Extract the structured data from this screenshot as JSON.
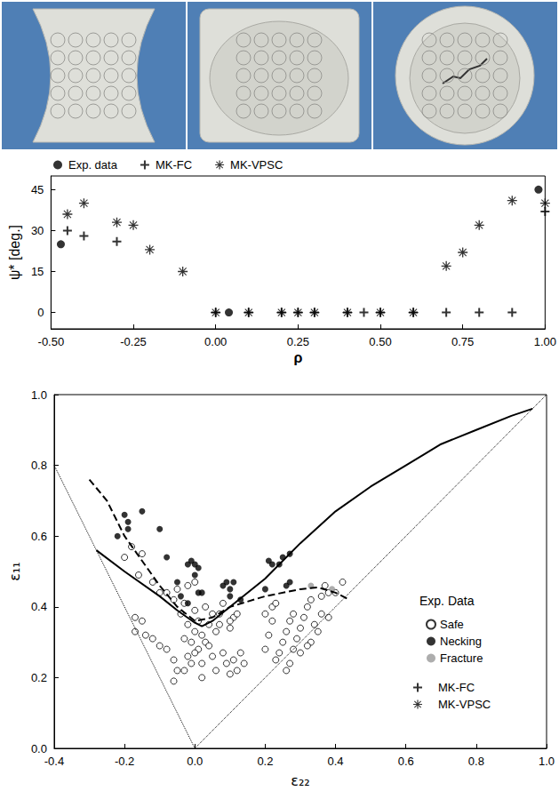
{
  "chart_data": [
    {
      "type": "scatter",
      "x_label": "ρ",
      "y_label": "ψ* [deg.]",
      "xlim": [
        -0.5,
        1.0
      ],
      "ylim": [
        -6,
        50
      ],
      "xticks": [
        {
          "value": -0.5,
          "label": "-0.50"
        },
        {
          "value": -0.25,
          "label": "-0.25"
        },
        {
          "value": 0,
          "label": "0.00"
        },
        {
          "value": 0.25,
          "label": "0.25"
        },
        {
          "value": 0.5,
          "label": "0.50"
        },
        {
          "value": 0.75,
          "label": "0.75"
        },
        {
          "value": 1.0,
          "label": "1.00"
        }
      ],
      "yticks": [
        0,
        15,
        30,
        45
      ],
      "grid": false,
      "legend": "top",
      "series": [
        {
          "name": "Exp. data",
          "marker": "filled_circle",
          "color": "#000000",
          "x": [
            -0.47,
            0.04,
            0.98
          ],
          "values": [
            25,
            0,
            45
          ]
        },
        {
          "name": "MK-FC",
          "marker": "plus",
          "color": "#000000",
          "x": [
            -0.45,
            -0.4,
            -0.3,
            0,
            0.1,
            0.2,
            0.25,
            0.3,
            0.4,
            0.45,
            0.5,
            0.6,
            0.7,
            0.8,
            0.9,
            1.0
          ],
          "values": [
            30,
            28,
            26,
            0,
            0,
            0,
            0,
            0,
            0,
            0,
            0,
            0,
            0,
            0,
            0,
            37
          ]
        },
        {
          "name": "MK-VPSC",
          "marker": "asterisk",
          "color": "#000000",
          "x": [
            -0.45,
            -0.4,
            -0.3,
            -0.25,
            -0.2,
            -0.1,
            0,
            0.1,
            0.2,
            0.25,
            0.3,
            0.4,
            0.5,
            0.6,
            0.7,
            0.75,
            0.8,
            0.9,
            1.0
          ],
          "values": [
            36,
            40,
            33,
            32,
            23,
            15,
            0,
            0,
            0,
            0,
            0,
            0,
            0,
            0,
            17,
            22,
            32,
            41,
            40
          ]
        }
      ]
    },
    {
      "type": "scatter",
      "x_label": "ε₂₂",
      "y_label": "ε₁₁",
      "xlim": [
        -0.4,
        1.0
      ],
      "ylim": [
        0,
        1.0
      ],
      "xticks": [
        -0.4,
        -0.2,
        {
          "value": 0,
          "label": "0.0"
        },
        0.2,
        0.4,
        0.6,
        0.8,
        {
          "value": 1.0,
          "label": "1.0"
        }
      ],
      "yticks": [
        {
          "value": 0,
          "label": "0.0"
        },
        0.2,
        0.4,
        0.6,
        0.8,
        {
          "value": 1.0,
          "label": "1.0"
        }
      ],
      "grid": false,
      "legend": "right",
      "legend_title": "Exp. Data",
      "series": [
        {
          "type": "line",
          "line_style": "dotted",
          "color": "#000000",
          "x": [
            -0.4,
            0,
            1.0
          ],
          "values": [
            0.8,
            0,
            1.0
          ]
        },
        {
          "name": "Safe",
          "marker": "open_circle",
          "color": "#000000",
          "x": [
            -0.2,
            -0.18,
            -0.15,
            -0.16,
            -0.12,
            -0.1,
            -0.08,
            -0.06,
            -0.05,
            -0.03,
            -0.02,
            0.0,
            -0.04,
            -0.17,
            -0.15,
            -0.17,
            -0.14,
            -0.12,
            -0.1,
            -0.08,
            -0.06,
            -0.05,
            -0.06,
            -0.03,
            -0.02,
            -0.01,
            0.0,
            0.01,
            0.02,
            0.02,
            0.03,
            0.04,
            0.05,
            0.06,
            0.05,
            0.03,
            -0.02,
            -0.03,
            0.0,
            0.01,
            0.02,
            -0.01,
            0.0,
            0.04,
            0.06,
            0.07,
            0.07,
            0.08,
            0.09,
            0.1,
            0.11,
            0.12,
            0.13,
            0.14,
            0.1,
            0.11,
            0.12,
            0.08,
            0.1,
            0.2,
            0.21,
            0.22,
            0.2,
            0.22,
            0.23,
            0.23,
            0.24,
            0.25,
            0.26,
            0.27,
            0.28,
            0.29,
            0.3,
            0.31,
            0.32,
            0.33,
            0.34,
            0.35,
            0.36,
            0.36,
            0.38,
            0.37,
            0.4,
            0.42,
            0.38,
            0.33,
            0.3,
            0.32,
            0.26,
            0.27,
            0.28
          ],
          "values": [
            0.54,
            0.57,
            0.55,
            0.49,
            0.47,
            0.44,
            0.44,
            0.42,
            0.45,
            0.41,
            0.46,
            0.47,
            0.38,
            0.37,
            0.36,
            0.33,
            0.32,
            0.31,
            0.29,
            0.28,
            0.25,
            0.22,
            0.19,
            0.22,
            0.26,
            0.3,
            0.33,
            0.28,
            0.24,
            0.2,
            0.3,
            0.35,
            0.26,
            0.22,
            0.38,
            0.4,
            0.35,
            0.31,
            0.39,
            0.36,
            0.32,
            0.24,
            0.27,
            0.29,
            0.33,
            0.38,
            0.35,
            0.27,
            0.24,
            0.21,
            0.25,
            0.22,
            0.27,
            0.24,
            0.34,
            0.37,
            0.38,
            0.41,
            0.36,
            0.28,
            0.32,
            0.36,
            0.38,
            0.4,
            0.41,
            0.25,
            0.27,
            0.3,
            0.33,
            0.36,
            0.38,
            0.31,
            0.34,
            0.37,
            0.4,
            0.42,
            0.35,
            0.33,
            0.38,
            0.43,
            0.44,
            0.46,
            0.44,
            0.47,
            0.37,
            0.3,
            0.27,
            0.29,
            0.22,
            0.24,
            0.28
          ]
        },
        {
          "name": "Necking",
          "marker": "filled_circle",
          "color": "#000000",
          "x": [
            -0.22,
            -0.2,
            -0.19,
            -0.19,
            -0.15,
            -0.1,
            -0.08,
            -0.05,
            -0.04,
            -0.02,
            -0.01,
            0.0,
            0.0,
            0.01,
            0.01,
            0.02,
            -0.02,
            0.08,
            0.09,
            0.1,
            0.1,
            0.11,
            0.13,
            0.21,
            0.22,
            0.24,
            0.25,
            0.27,
            0.26,
            0.27,
            0.2
          ],
          "values": [
            0.6,
            0.66,
            0.62,
            0.64,
            0.67,
            0.62,
            0.54,
            0.47,
            0.43,
            0.52,
            0.53,
            0.52,
            0.49,
            0.51,
            0.44,
            0.44,
            0.41,
            0.46,
            0.47,
            0.45,
            0.43,
            0.47,
            0.42,
            0.53,
            0.52,
            0.52,
            0.54,
            0.55,
            0.46,
            0.47,
            0.45
          ]
        },
        {
          "name": "Fracture",
          "marker": "filled_circle",
          "color": "#999999",
          "x": [
            0.33,
            0.39
          ],
          "values": [
            0.46,
            0.45
          ]
        },
        {
          "name": "MK-FC",
          "type": "line",
          "line_style": "solid",
          "color": "#000000",
          "x": [
            -0.28,
            -0.2,
            -0.1,
            -0.05,
            0.0,
            0.02,
            0.05,
            0.1,
            0.2,
            0.3,
            0.4,
            0.5,
            0.6,
            0.7,
            0.8,
            0.9,
            0.96
          ],
          "values": [
            0.56,
            0.5,
            0.43,
            0.39,
            0.355,
            0.345,
            0.36,
            0.4,
            0.48,
            0.58,
            0.67,
            0.74,
            0.8,
            0.86,
            0.9,
            0.94,
            0.96
          ]
        },
        {
          "name": "MK-VPSC",
          "type": "line",
          "line_style": "dashed",
          "color": "#000000",
          "x": [
            -0.3,
            -0.25,
            -0.2,
            -0.1,
            -0.05,
            0.0,
            0.05,
            0.1,
            0.2,
            0.3,
            0.35,
            0.4,
            0.44
          ],
          "values": [
            0.76,
            0.7,
            0.6,
            0.46,
            0.4,
            0.36,
            0.37,
            0.4,
            0.43,
            0.45,
            0.455,
            0.44,
            0.42
          ]
        }
      ]
    }
  ]
}
